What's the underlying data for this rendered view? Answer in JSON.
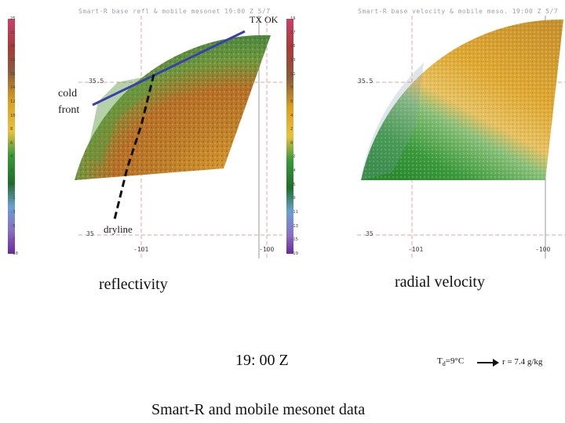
{
  "left_panel": {
    "header": "Smart-R base refl & mobile mesonet  19:00 Z 5/7",
    "colorbar_labels": [
      "25",
      "22",
      "20",
      "18",
      "16",
      "14",
      "12",
      "10",
      "8",
      "6",
      "4",
      "2",
      "0",
      "-1",
      "-3",
      "-5",
      "-7",
      "-10"
    ],
    "lat_label": "35.5",
    "lat_label_bottom": "35",
    "lon_labels": [
      "-101",
      "-100"
    ],
    "state_labels": "TX  OK",
    "annotations": {
      "cold_front": "cold\nfront",
      "dryline": "dryline"
    },
    "colors": {
      "cold_front_line": "#3a3fb0",
      "dryline": "#111111"
    }
  },
  "right_panel": {
    "header": "Smart-R base velocity & mobile meso.  19:00 Z 5/7",
    "colorbar_labels": [
      "19",
      "17",
      "15",
      "13",
      "11",
      "9",
      "6",
      "4",
      "2",
      "0",
      "-2",
      "-4",
      "-6",
      "-9",
      "-11",
      "-13",
      "-15",
      "-19"
    ],
    "lat_label": "35.5",
    "lat_label_bottom": "35",
    "lon_labels": [
      "-101",
      "-100"
    ]
  },
  "captions": {
    "reflectivity": "reflectivity",
    "radial_velocity": "radial velocity",
    "time": "19: 00 Z",
    "source": "Smart-R and mobile mesonet data"
  },
  "legend": {
    "td_prefix": "T",
    "td_sub": "d",
    "td_value": "=9°C",
    "ratio": "r = 7.4 g/kg"
  }
}
